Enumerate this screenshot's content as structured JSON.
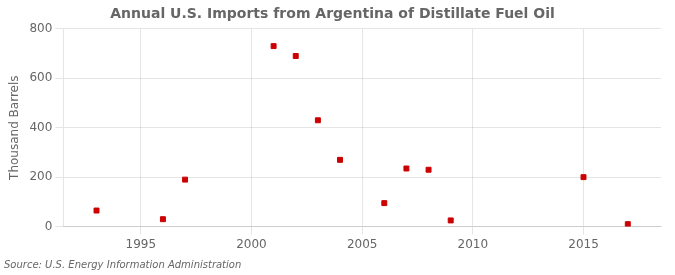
{
  "chart_data": {
    "type": "scatter",
    "title": "Annual U.S. Imports from Argentina of Distillate Fuel Oil",
    "ylabel": "Thousand Barrels",
    "source": "Source: U.S. Energy Information Administration",
    "x": [
      1993,
      1996,
      1997,
      2001,
      2002,
      2003,
      2004,
      2006,
      2007,
      2008,
      2009,
      2015,
      2017
    ],
    "values": [
      65,
      30,
      190,
      730,
      690,
      430,
      270,
      95,
      235,
      230,
      25,
      200,
      10
    ],
    "color": "#cc0000",
    "marker": "square",
    "xlim": [
      1991.5,
      2018.5
    ],
    "ylim": [
      0,
      800
    ],
    "xticks": [
      1995,
      2000,
      2005,
      2010,
      2015
    ],
    "yticks": [
      0,
      200,
      400,
      600,
      800
    ],
    "grid": true
  }
}
